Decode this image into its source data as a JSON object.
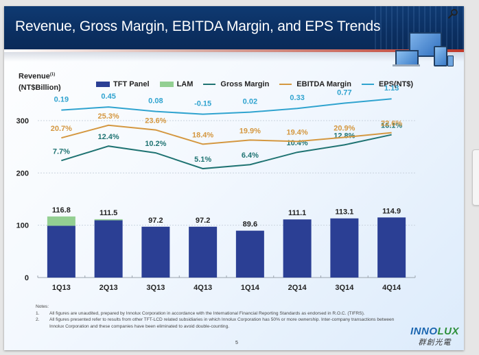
{
  "slide": {
    "title": "Revenue, Gross Margin, EBITDA Margin, and EPS Trends",
    "page_number": "5",
    "logo_en_part1": "INNO",
    "logo_en_part2": "LUX",
    "logo_zh": "群創光電"
  },
  "viewer": {
    "zoom_icon": "magnifier-icon"
  },
  "chart_data": {
    "type": "bar",
    "title": "Revenue, Gross Margin, EBITDA Margin, and EPS Trends",
    "ylabel_line1": "Revenue",
    "ylabel_sup": "(1)",
    "ylabel_line2": "(NT$Billion)",
    "xlabel": "",
    "ylim": [
      0,
      300
    ],
    "yticks": [
      0,
      100,
      200,
      300
    ],
    "ytick_labels": [
      "0",
      "100",
      "200",
      "300"
    ],
    "grid": true,
    "legend_position": "top",
    "categories": [
      "1Q13",
      "2Q13",
      "3Q13",
      "4Q13",
      "1Q14",
      "2Q14",
      "3Q14",
      "4Q14"
    ],
    "series": [
      {
        "name": "TFT Panel",
        "kind": "bar",
        "color": "#2b3f94",
        "values": [
          99.0,
          109.5,
          97.2,
          97.2,
          89.6,
          111.1,
          113.1,
          114.9
        ]
      },
      {
        "name": "LAM",
        "kind": "bar",
        "color": "#93cf92",
        "values": [
          17.8,
          2.0,
          0,
          0,
          0,
          0,
          0,
          0
        ]
      },
      {
        "name": "Gross Margin",
        "kind": "line",
        "color": "#1f7372",
        "unit": "%",
        "values": [
          7.7,
          12.4,
          10.2,
          5.1,
          6.4,
          10.4,
          12.8,
          16.1
        ],
        "labels": [
          "7.7%",
          "12.4%",
          "10.2%",
          "5.1%",
          "6.4%",
          "10.4%",
          "12.8%",
          "16.1%"
        ]
      },
      {
        "name": "EBITDA Margin",
        "kind": "line",
        "color": "#d4973f",
        "unit": "%",
        "values": [
          20.7,
          25.3,
          23.6,
          18.4,
          19.9,
          19.4,
          20.9,
          22.6
        ],
        "labels": [
          "20.7%",
          "25.3%",
          "23.6%",
          "18.4%",
          "19.9%",
          "19.4%",
          "20.9%",
          "22.6%"
        ]
      },
      {
        "name": "EPS(NT$)",
        "kind": "line",
        "color": "#2fa3cf",
        "unit": "NT$",
        "values": [
          0.19,
          0.45,
          0.08,
          -0.15,
          0.02,
          0.33,
          0.77,
          1.13
        ],
        "labels": [
          "0.19",
          "0.45",
          "0.08",
          "-0.15",
          "0.02",
          "0.33",
          "0.77",
          "1.13"
        ]
      }
    ],
    "totals": [
      116.8,
      111.5,
      97.2,
      97.2,
      89.6,
      111.1,
      113.1,
      114.9
    ],
    "total_labels": [
      "116.8",
      "111.5",
      "97.2",
      "97.2",
      "89.6",
      "111.1",
      "113.1",
      "114.9"
    ],
    "legend": [
      "TFT Panel",
      "LAM",
      "Gross Margin",
      "EBITDA Margin",
      "EPS(NT$)"
    ]
  },
  "notes": {
    "heading": "Notes:",
    "items": [
      {
        "num": "1.",
        "text": "All figures are unaudited, prepared by Innolux Corporation in accordance with the International Financial Reporting Standards as endorsed in R.O.C. (TIFRS)."
      },
      {
        "num": "2.",
        "text": "All figures presented refer to results from other TFT-LCD related subsidiaries in which Innolux Corporation has 50% or more ownership. Inter-company transactions between Innolux Corporation and these companies have been eliminated to avoid double-counting."
      }
    ]
  }
}
